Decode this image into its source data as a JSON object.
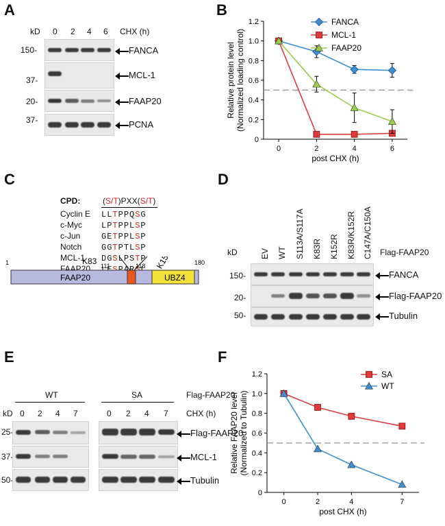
{
  "panel_labels": {
    "A": "A",
    "B": "B",
    "C": "C",
    "D": "D",
    "E": "E",
    "F": "F"
  },
  "panelA": {
    "kd_label": "kD",
    "lanes": [
      "0",
      "2",
      "4",
      "6"
    ],
    "condition": "CHX (h)",
    "markers": [
      "150-",
      "37-",
      "20-",
      "37-"
    ],
    "blots": [
      "FANCA",
      "MCL-1",
      "FAAP20",
      "PCNA"
    ]
  },
  "chart_data": [
    {
      "id": "B",
      "type": "line",
      "title": "",
      "xlabel": "post CHX (h)",
      "ylabel_1": "Relative protein level",
      "ylabel_2": "(Normalized loading control)",
      "x": [
        0,
        2,
        4,
        6
      ],
      "xticks": [
        "0",
        "2",
        "4",
        "6"
      ],
      "yticks": [
        "0",
        "0.2",
        "0.4",
        "0.6",
        "0.8",
        "1.0",
        "1.2"
      ],
      "ylim": [
        0,
        1.2
      ],
      "reference_line": 0.5,
      "series": [
        {
          "name": "FANCA",
          "values": [
            1.0,
            0.89,
            0.71,
            0.7
          ],
          "errors": [
            0,
            0.06,
            0.04,
            0.07
          ],
          "color": "#3d8fd1",
          "marker": "diamond"
        },
        {
          "name": "MCL-1",
          "values": [
            1.0,
            0.05,
            0.05,
            0.06
          ],
          "errors": [
            0,
            0.01,
            0.01,
            0.02
          ],
          "color": "#e03b3b",
          "marker": "square"
        },
        {
          "name": "FAAP20",
          "values": [
            1.0,
            0.56,
            0.32,
            0.18
          ],
          "errors": [
            0,
            0.08,
            0.15,
            0.12
          ],
          "color": "#9acd4a",
          "marker": "triangle"
        }
      ]
    },
    {
      "id": "F",
      "type": "line",
      "title": "",
      "xlabel": "post CHX (h)",
      "ylabel_1": "Relative FAAP20 level",
      "ylabel_2": "(Normalized to Tubulin)",
      "x": [
        0,
        2,
        4,
        7
      ],
      "xticks": [
        "0",
        "2",
        "4",
        "7"
      ],
      "yticks": [
        "0",
        "0.2",
        "0.4",
        "0.6",
        "0.8",
        "1.0",
        "1.2"
      ],
      "ylim": [
        0,
        1.2
      ],
      "reference_line": 0.5,
      "series": [
        {
          "name": "SA",
          "values": [
            1.0,
            0.86,
            0.77,
            0.67
          ],
          "color": "#e03b3b",
          "marker": "square"
        },
        {
          "name": "WT",
          "values": [
            1.0,
            0.44,
            0.28,
            0.08
          ],
          "color": "#3d8fd1",
          "marker": "triangle"
        }
      ]
    }
  ],
  "panelC": {
    "cpd_label": "CPD",
    "motif_parts": [
      "(",
      "S/T",
      ")PXX(",
      "S/T",
      ")"
    ],
    "rows": [
      {
        "name": "Cyclin E",
        "seq": [
          "L",
          "L",
          "T",
          "P",
          "P",
          "Q",
          "S",
          "G"
        ],
        "red": [
          2,
          6
        ]
      },
      {
        "name": "c-Myc",
        "seq": [
          "L",
          "P",
          "T",
          "P",
          "P",
          "L",
          "S",
          "P"
        ],
        "red": [
          2,
          6
        ]
      },
      {
        "name": "c-Jun",
        "seq": [
          "G",
          "E",
          "T",
          "P",
          "P",
          "L",
          "S",
          "P"
        ],
        "red": [
          2,
          6
        ]
      },
      {
        "name": "Notch",
        "seq": [
          "G",
          "G",
          "T",
          "P",
          "T",
          "L",
          "S",
          "P"
        ],
        "red": [
          2,
          6
        ]
      },
      {
        "name": "MCL-1",
        "seq": [
          "D",
          "G",
          "S",
          "L",
          "P",
          "S",
          "T",
          "P"
        ],
        "red": [
          2,
          6
        ]
      },
      {
        "name": "FAAP20",
        "seq": [
          "L",
          "E",
          "S",
          "P",
          "A",
          "R",
          "S",
          "L"
        ],
        "red": [
          2,
          6
        ]
      }
    ],
    "domain": {
      "start": "1",
      "end": "180",
      "p111": "111",
      "p118": "118",
      "k83": "K83",
      "k152": "K152",
      "name": "FAAP20",
      "ubz": "UBZ4"
    }
  },
  "panelD": {
    "kd_label": "kD",
    "lanes": [
      "EV",
      "WT",
      "S113A/S117A",
      "K83R",
      "K152R",
      "K83R/K152R",
      "C147A/C150A"
    ],
    "construct": "Flag-FAAP20",
    "markers": [
      "150-",
      "20-",
      "50-"
    ],
    "blots": [
      "FANCA",
      "Flag-FAAP20",
      "Tubulin"
    ]
  },
  "panelE": {
    "kd_label": "kD",
    "groups": [
      "WT",
      "SA"
    ],
    "construct": "Flag-FAAP20",
    "lanes": [
      "0",
      "2",
      "4",
      "7",
      "0",
      "2",
      "4",
      "7"
    ],
    "condition": "CHX (h)",
    "markers": [
      "25-",
      "37-",
      "50-"
    ],
    "blots": [
      "Flag-FAAP20",
      "MCL-1",
      "Tubulin"
    ]
  }
}
